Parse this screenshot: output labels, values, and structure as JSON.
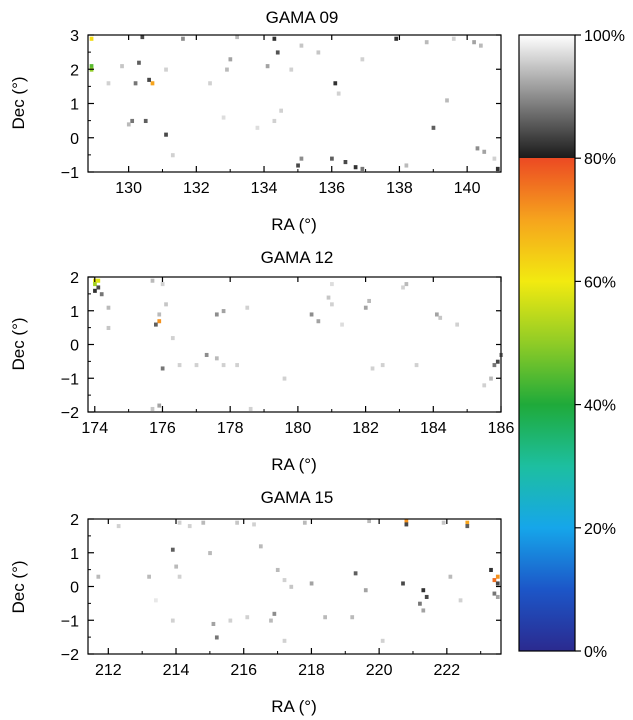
{
  "chart_data": [
    {
      "type": "heatmap",
      "title": "GAMA 09",
      "xlabel": "RA (°)",
      "ylabel": "Dec (°)",
      "xlim": [
        128.8,
        141.0
      ],
      "ylim": [
        -1.0,
        3.0
      ],
      "xticks": [
        130,
        132,
        134,
        136,
        138,
        140
      ],
      "yticks": [
        -1,
        0,
        1,
        2,
        3
      ],
      "xtick_labels": [
        "130",
        "132",
        "134",
        "136",
        "138",
        "140"
      ],
      "ytick_labels": [
        "−1",
        "0",
        "1",
        "2",
        "3"
      ],
      "cells": [
        {
          "x": 128.9,
          "y": 2.9,
          "v": 62
        },
        {
          "x": 128.9,
          "y": 2.1,
          "v": 45
        },
        {
          "x": 128.9,
          "y": 2.0,
          "v": 50
        },
        {
          "x": 130.7,
          "y": 1.6,
          "v": 70
        },
        {
          "x": 130.6,
          "y": 1.7,
          "v": 84
        },
        {
          "x": 130.3,
          "y": 2.2,
          "v": 86
        },
        {
          "x": 130.2,
          "y": 1.6,
          "v": 88
        },
        {
          "x": 129.8,
          "y": 2.1,
          "v": 95
        },
        {
          "x": 129.4,
          "y": 1.6,
          "v": 96
        },
        {
          "x": 131.1,
          "y": 2.0,
          "v": 96
        },
        {
          "x": 131.1,
          "y": 0.1,
          "v": 84
        },
        {
          "x": 130.1,
          "y": 0.5,
          "v": 88
        },
        {
          "x": 130.5,
          "y": 0.5,
          "v": 86
        },
        {
          "x": 130.0,
          "y": 0.4,
          "v": 94
        },
        {
          "x": 131.3,
          "y": -0.5,
          "v": 96
        },
        {
          "x": 131.6,
          "y": 2.9,
          "v": 90
        },
        {
          "x": 130.4,
          "y": 2.95,
          "v": 84
        },
        {
          "x": 133.0,
          "y": 2.3,
          "v": 92
        },
        {
          "x": 132.9,
          "y": 2.0,
          "v": 94
        },
        {
          "x": 132.4,
          "y": 1.6,
          "v": 96
        },
        {
          "x": 134.3,
          "y": 2.9,
          "v": 82
        },
        {
          "x": 134.4,
          "y": 2.5,
          "v": 85
        },
        {
          "x": 134.1,
          "y": 2.1,
          "v": 92
        },
        {
          "x": 135.1,
          "y": 2.7,
          "v": 95
        },
        {
          "x": 134.8,
          "y": 2.0,
          "v": 96
        },
        {
          "x": 134.5,
          "y": 0.8,
          "v": 96
        },
        {
          "x": 134.3,
          "y": 0.5,
          "v": 96
        },
        {
          "x": 133.8,
          "y": 0.3,
          "v": 97
        },
        {
          "x": 132.8,
          "y": 0.6,
          "v": 97
        },
        {
          "x": 135.0,
          "y": -0.8,
          "v": 84
        },
        {
          "x": 135.1,
          "y": -0.6,
          "v": 90
        },
        {
          "x": 135.6,
          "y": 2.5,
          "v": 95
        },
        {
          "x": 136.1,
          "y": 1.6,
          "v": 82
        },
        {
          "x": 136.2,
          "y": 1.3,
          "v": 96
        },
        {
          "x": 136.0,
          "y": -0.6,
          "v": 86
        },
        {
          "x": 136.4,
          "y": -0.7,
          "v": 84
        },
        {
          "x": 136.7,
          "y": -0.85,
          "v": 82
        },
        {
          "x": 136.9,
          "y": -0.9,
          "v": 88
        },
        {
          "x": 137.9,
          "y": 2.9,
          "v": 82
        },
        {
          "x": 138.8,
          "y": 2.8,
          "v": 94
        },
        {
          "x": 139.6,
          "y": 2.9,
          "v": 96
        },
        {
          "x": 140.2,
          "y": 2.8,
          "v": 92
        },
        {
          "x": 140.4,
          "y": 2.7,
          "v": 94
        },
        {
          "x": 139.4,
          "y": 1.1,
          "v": 94
        },
        {
          "x": 139.0,
          "y": 0.3,
          "v": 86
        },
        {
          "x": 138.2,
          "y": -0.8,
          "v": 94
        },
        {
          "x": 140.3,
          "y": -0.3,
          "v": 90
        },
        {
          "x": 140.5,
          "y": -0.4,
          "v": 92
        },
        {
          "x": 140.9,
          "y": -0.9,
          "v": 82
        },
        {
          "x": 140.8,
          "y": -0.6,
          "v": 96
        },
        {
          "x": 133.2,
          "y": 2.95,
          "v": 94
        },
        {
          "x": 136.9,
          "y": 2.3,
          "v": 96
        }
      ]
    },
    {
      "type": "heatmap",
      "title": "GAMA 12",
      "xlabel": "RA (°)",
      "ylabel": "Dec (°)",
      "xlim": [
        173.8,
        186.0
      ],
      "ylim": [
        -2.0,
        2.0
      ],
      "xticks": [
        174,
        176,
        178,
        180,
        182,
        184,
        186
      ],
      "yticks": [
        -2,
        -1,
        0,
        1,
        2
      ],
      "xtick_labels": [
        "174",
        "176",
        "178",
        "180",
        "182",
        "184",
        "186"
      ],
      "ytick_labels": [
        "−2",
        "−1",
        "0",
        "1",
        "2"
      ],
      "cells": [
        {
          "x": 174.0,
          "y": 1.9,
          "v": 60
        },
        {
          "x": 174.0,
          "y": 1.8,
          "v": 52
        },
        {
          "x": 174.1,
          "y": 1.9,
          "v": 58
        },
        {
          "x": 174.0,
          "y": 1.6,
          "v": 82
        },
        {
          "x": 174.1,
          "y": 1.7,
          "v": 84
        },
        {
          "x": 174.2,
          "y": 1.5,
          "v": 88
        },
        {
          "x": 174.4,
          "y": 1.1,
          "v": 94
        },
        {
          "x": 174.4,
          "y": 0.5,
          "v": 95
        },
        {
          "x": 175.9,
          "y": 0.7,
          "v": 72
        },
        {
          "x": 175.8,
          "y": 0.6,
          "v": 86
        },
        {
          "x": 175.9,
          "y": 0.9,
          "v": 94
        },
        {
          "x": 176.1,
          "y": 1.2,
          "v": 95
        },
        {
          "x": 175.7,
          "y": 1.9,
          "v": 94
        },
        {
          "x": 176.0,
          "y": 1.8,
          "v": 96
        },
        {
          "x": 176.3,
          "y": 0.2,
          "v": 96
        },
        {
          "x": 176.5,
          "y": -0.6,
          "v": 96
        },
        {
          "x": 175.9,
          "y": -1.8,
          "v": 92
        },
        {
          "x": 175.7,
          "y": -1.9,
          "v": 95
        },
        {
          "x": 176.0,
          "y": -0.7,
          "v": 88
        },
        {
          "x": 177.3,
          "y": -0.3,
          "v": 90
        },
        {
          "x": 177.6,
          "y": -0.4,
          "v": 94
        },
        {
          "x": 177.8,
          "y": -0.6,
          "v": 96
        },
        {
          "x": 177.0,
          "y": -0.6,
          "v": 96
        },
        {
          "x": 177.6,
          "y": 0.9,
          "v": 90
        },
        {
          "x": 177.8,
          "y": 1.0,
          "v": 92
        },
        {
          "x": 178.5,
          "y": 1.1,
          "v": 96
        },
        {
          "x": 178.6,
          "y": -1.9,
          "v": 96
        },
        {
          "x": 179.6,
          "y": -1.0,
          "v": 96
        },
        {
          "x": 180.4,
          "y": 0.9,
          "v": 90
        },
        {
          "x": 180.6,
          "y": 0.7,
          "v": 92
        },
        {
          "x": 180.9,
          "y": 1.4,
          "v": 95
        },
        {
          "x": 181.0,
          "y": 1.2,
          "v": 96
        },
        {
          "x": 181.0,
          "y": 1.8,
          "v": 97
        },
        {
          "x": 181.3,
          "y": 0.6,
          "v": 97
        },
        {
          "x": 182.0,
          "y": 1.1,
          "v": 92
        },
        {
          "x": 182.1,
          "y": 1.3,
          "v": 94
        },
        {
          "x": 182.2,
          "y": -0.7,
          "v": 96
        },
        {
          "x": 182.5,
          "y": -0.6,
          "v": 96
        },
        {
          "x": 183.2,
          "y": 1.8,
          "v": 94
        },
        {
          "x": 183.1,
          "y": 1.7,
          "v": 96
        },
        {
          "x": 183.5,
          "y": -0.6,
          "v": 96
        },
        {
          "x": 184.1,
          "y": 0.9,
          "v": 92
        },
        {
          "x": 184.2,
          "y": 0.8,
          "v": 95
        },
        {
          "x": 184.7,
          "y": 0.6,
          "v": 96
        },
        {
          "x": 185.9,
          "y": -0.5,
          "v": 84
        },
        {
          "x": 185.8,
          "y": -0.6,
          "v": 88
        },
        {
          "x": 185.7,
          "y": -1.0,
          "v": 94
        },
        {
          "x": 185.5,
          "y": -1.2,
          "v": 96
        },
        {
          "x": 186.0,
          "y": -0.3,
          "v": 90
        },
        {
          "x": 178.2,
          "y": -0.6,
          "v": 96
        }
      ]
    },
    {
      "type": "heatmap",
      "title": "GAMA 15",
      "xlabel": "RA (°)",
      "ylabel": "Dec (°)",
      "xlim": [
        211.4,
        223.6
      ],
      "ylim": [
        -2.0,
        2.0
      ],
      "xticks": [
        212,
        214,
        216,
        218,
        220,
        222
      ],
      "yticks": [
        -2,
        -1,
        0,
        1,
        2
      ],
      "xtick_labels": [
        "212",
        "214",
        "216",
        "218",
        "220",
        "222"
      ],
      "ytick_labels": [
        "−2",
        "−1",
        "0",
        "1",
        "2"
      ],
      "cells": [
        {
          "x": 223.5,
          "y": 0.3,
          "v": 72
        },
        {
          "x": 223.4,
          "y": 0.2,
          "v": 76
        },
        {
          "x": 223.3,
          "y": 0.5,
          "v": 82
        },
        {
          "x": 223.5,
          "y": 0.1,
          "v": 84
        },
        {
          "x": 223.4,
          "y": -0.2,
          "v": 88
        },
        {
          "x": 223.5,
          "y": -0.3,
          "v": 92
        },
        {
          "x": 222.6,
          "y": 1.9,
          "v": 70
        },
        {
          "x": 222.6,
          "y": 1.8,
          "v": 86
        },
        {
          "x": 220.8,
          "y": 1.95,
          "v": 72
        },
        {
          "x": 220.8,
          "y": 1.85,
          "v": 84
        },
        {
          "x": 221.3,
          "y": -0.1,
          "v": 82
        },
        {
          "x": 221.4,
          "y": -0.3,
          "v": 84
        },
        {
          "x": 221.2,
          "y": -0.5,
          "v": 88
        },
        {
          "x": 221.3,
          "y": -0.7,
          "v": 92
        },
        {
          "x": 220.7,
          "y": 0.1,
          "v": 84
        },
        {
          "x": 222.1,
          "y": 0.3,
          "v": 94
        },
        {
          "x": 220.1,
          "y": -1.6,
          "v": 96
        },
        {
          "x": 219.6,
          "y": -0.1,
          "v": 92
        },
        {
          "x": 219.3,
          "y": 0.4,
          "v": 86
        },
        {
          "x": 219.2,
          "y": -0.9,
          "v": 94
        },
        {
          "x": 218.4,
          "y": -0.9,
          "v": 94
        },
        {
          "x": 218.0,
          "y": 0.1,
          "v": 92
        },
        {
          "x": 217.8,
          "y": 1.9,
          "v": 94
        },
        {
          "x": 217.0,
          "y": 0.5,
          "v": 94
        },
        {
          "x": 217.2,
          "y": 0.2,
          "v": 96
        },
        {
          "x": 217.4,
          "y": 0.0,
          "v": 95
        },
        {
          "x": 216.9,
          "y": -0.8,
          "v": 90
        },
        {
          "x": 216.8,
          "y": -1.0,
          "v": 94
        },
        {
          "x": 217.2,
          "y": -1.6,
          "v": 96
        },
        {
          "x": 216.5,
          "y": 1.2,
          "v": 94
        },
        {
          "x": 216.1,
          "y": -0.9,
          "v": 96
        },
        {
          "x": 215.6,
          "y": -1.0,
          "v": 96
        },
        {
          "x": 215.2,
          "y": -1.5,
          "v": 88
        },
        {
          "x": 215.1,
          "y": -1.1,
          "v": 92
        },
        {
          "x": 215.0,
          "y": 1.0,
          "v": 94
        },
        {
          "x": 214.8,
          "y": 1.9,
          "v": 94
        },
        {
          "x": 214.4,
          "y": 1.8,
          "v": 96
        },
        {
          "x": 214.1,
          "y": 1.9,
          "v": 96
        },
        {
          "x": 213.9,
          "y": 1.1,
          "v": 86
        },
        {
          "x": 214.0,
          "y": 0.6,
          "v": 94
        },
        {
          "x": 214.1,
          "y": 0.3,
          "v": 96
        },
        {
          "x": 213.9,
          "y": -1.0,
          "v": 96
        },
        {
          "x": 213.2,
          "y": 0.3,
          "v": 94
        },
        {
          "x": 213.4,
          "y": -0.4,
          "v": 98
        },
        {
          "x": 212.3,
          "y": 1.8,
          "v": 96
        },
        {
          "x": 211.7,
          "y": 0.3,
          "v": 94
        },
        {
          "x": 215.8,
          "y": 1.9,
          "v": 95
        },
        {
          "x": 216.3,
          "y": 1.85,
          "v": 96
        },
        {
          "x": 219.7,
          "y": 1.95,
          "v": 94
        },
        {
          "x": 221.9,
          "y": 1.9,
          "v": 95
        },
        {
          "x": 222.4,
          "y": -0.4,
          "v": 96
        }
      ]
    }
  ],
  "colorbar": {
    "ticks": [
      0,
      20,
      40,
      60,
      80,
      100
    ],
    "tick_labels": [
      "0%",
      "20%",
      "40%",
      "60%",
      "80%",
      "100%"
    ],
    "range": [
      0,
      100
    ]
  }
}
